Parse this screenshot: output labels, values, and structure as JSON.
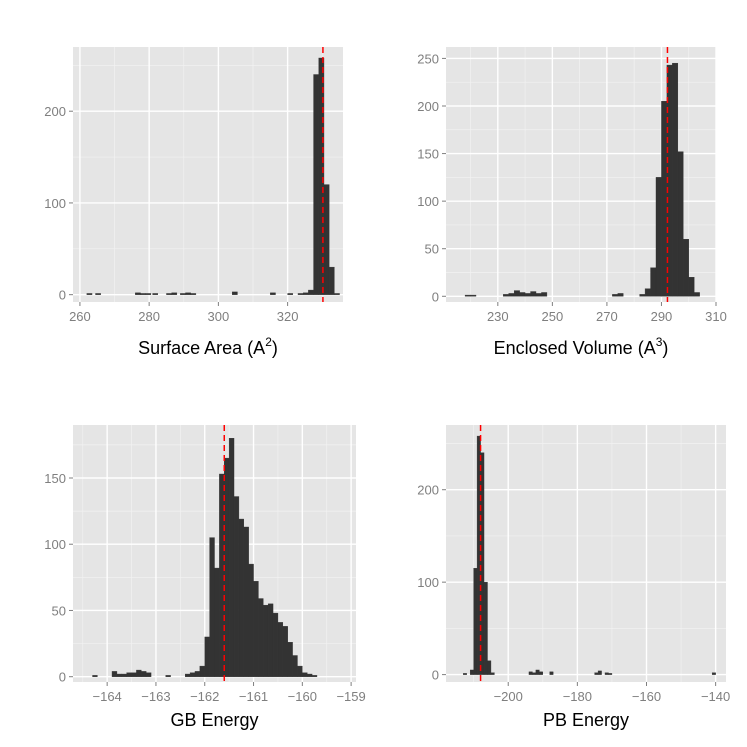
{
  "figure": {
    "reference_line_color": "#ff0000",
    "bar_color": "#333333",
    "panel_background": "#e5e5e5"
  },
  "chart_data": [
    {
      "type": "bar",
      "subtype": "histogram",
      "xlabel": "Surface Area (A",
      "xlabel_superscript": "2",
      "xlabel_suffix": ")",
      "ylabel": "",
      "xlim": [
        258,
        336
      ],
      "ylim": [
        -8,
        270
      ],
      "xticks": [
        260,
        280,
        300,
        320
      ],
      "xtick_labels": [
        "260",
        "280",
        "300",
        "320"
      ],
      "yticks": [
        0,
        100,
        200
      ],
      "ytick_labels": [
        "0",
        "100",
        "200"
      ],
      "reference_line": 330.2,
      "bins": [
        {
          "x0": 262,
          "x1": 263.5,
          "count": 1
        },
        {
          "x0": 264.5,
          "x1": 266,
          "count": 1
        },
        {
          "x0": 276,
          "x1": 277.5,
          "count": 2
        },
        {
          "x0": 277.5,
          "x1": 279,
          "count": 1
        },
        {
          "x0": 279,
          "x1": 280.5,
          "count": 1
        },
        {
          "x0": 281,
          "x1": 282.5,
          "count": 1
        },
        {
          "x0": 285,
          "x1": 286.5,
          "count": 1
        },
        {
          "x0": 286.5,
          "x1": 288,
          "count": 2
        },
        {
          "x0": 289,
          "x1": 290.5,
          "count": 1
        },
        {
          "x0": 290.5,
          "x1": 292,
          "count": 2
        },
        {
          "x0": 292,
          "x1": 293.5,
          "count": 1
        },
        {
          "x0": 304,
          "x1": 305.5,
          "count": 3
        },
        {
          "x0": 315,
          "x1": 316.5,
          "count": 2
        },
        {
          "x0": 320,
          "x1": 321.5,
          "count": 1
        },
        {
          "x0": 323,
          "x1": 324.5,
          "count": 1
        },
        {
          "x0": 324.5,
          "x1": 326,
          "count": 2
        },
        {
          "x0": 326,
          "x1": 327.5,
          "count": 5
        },
        {
          "x0": 327.5,
          "x1": 329,
          "count": 240
        },
        {
          "x0": 329,
          "x1": 330.5,
          "count": 258
        },
        {
          "x0": 330.5,
          "x1": 332,
          "count": 120
        },
        {
          "x0": 332,
          "x1": 333.5,
          "count": 30
        },
        {
          "x0": 333.5,
          "x1": 335,
          "count": 1
        }
      ]
    },
    {
      "type": "bar",
      "subtype": "histogram",
      "xlabel": "Enclosed Volume (A",
      "xlabel_superscript": "3",
      "xlabel_suffix": ")",
      "ylabel": "",
      "xlim": [
        211,
        310
      ],
      "ylim": [
        -6,
        262
      ],
      "xticks": [
        230,
        250,
        270,
        290,
        310
      ],
      "xtick_labels": [
        "230",
        "250",
        "270",
        "290",
        "310"
      ],
      "yticks": [
        0,
        50,
        100,
        150,
        200,
        250
      ],
      "ytick_labels": [
        "0",
        "50",
        "100",
        "150",
        "200",
        "250"
      ],
      "reference_line": 292.2,
      "bins": [
        {
          "x0": 218,
          "x1": 220,
          "count": 1
        },
        {
          "x0": 220,
          "x1": 222,
          "count": 1
        },
        {
          "x0": 232,
          "x1": 234,
          "count": 2
        },
        {
          "x0": 234,
          "x1": 236,
          "count": 3
        },
        {
          "x0": 236,
          "x1": 238,
          "count": 6
        },
        {
          "x0": 238,
          "x1": 240,
          "count": 4
        },
        {
          "x0": 240,
          "x1": 242,
          "count": 3
        },
        {
          "x0": 242,
          "x1": 244,
          "count": 5
        },
        {
          "x0": 244,
          "x1": 246,
          "count": 3
        },
        {
          "x0": 246,
          "x1": 248,
          "count": 4
        },
        {
          "x0": 272,
          "x1": 274,
          "count": 2
        },
        {
          "x0": 274,
          "x1": 276,
          "count": 3
        },
        {
          "x0": 282,
          "x1": 284,
          "count": 2
        },
        {
          "x0": 284,
          "x1": 286,
          "count": 8
        },
        {
          "x0": 286,
          "x1": 288,
          "count": 30
        },
        {
          "x0": 288,
          "x1": 290,
          "count": 125
        },
        {
          "x0": 290,
          "x1": 292,
          "count": 205
        },
        {
          "x0": 292,
          "x1": 294,
          "count": 243
        },
        {
          "x0": 294,
          "x1": 296,
          "count": 245
        },
        {
          "x0": 296,
          "x1": 298,
          "count": 152
        },
        {
          "x0": 298,
          "x1": 300,
          "count": 60
        },
        {
          "x0": 300,
          "x1": 302,
          "count": 20
        },
        {
          "x0": 302,
          "x1": 304,
          "count": 4
        }
      ]
    },
    {
      "type": "bar",
      "subtype": "histogram",
      "xlabel": "GB Energy",
      "xlabel_superscript": "",
      "xlabel_suffix": "",
      "ylabel": "",
      "xlim": [
        -164.7,
        -158.9
      ],
      "ylim": [
        -4,
        190
      ],
      "xticks": [
        -164,
        -163,
        -162,
        -161,
        -160,
        -159
      ],
      "xtick_labels": [
        "−164",
        "−163",
        "−162",
        "−161",
        "−160",
        "−159"
      ],
      "yticks": [
        0,
        50,
        100,
        150
      ],
      "ytick_labels": [
        "0",
        "50",
        "100",
        "150"
      ],
      "reference_line": -161.6,
      "bins": [
        {
          "x0": -164.3,
          "x1": -164.2,
          "count": 1
        },
        {
          "x0": -163.9,
          "x1": -163.8,
          "count": 4
        },
        {
          "x0": -163.8,
          "x1": -163.7,
          "count": 2
        },
        {
          "x0": -163.7,
          "x1": -163.6,
          "count": 2
        },
        {
          "x0": -163.6,
          "x1": -163.5,
          "count": 3
        },
        {
          "x0": -163.5,
          "x1": -163.4,
          "count": 3
        },
        {
          "x0": -163.4,
          "x1": -163.3,
          "count": 5
        },
        {
          "x0": -163.3,
          "x1": -163.2,
          "count": 4
        },
        {
          "x0": -163.2,
          "x1": -163.1,
          "count": 3
        },
        {
          "x0": -162.8,
          "x1": -162.7,
          "count": 1
        },
        {
          "x0": -162.4,
          "x1": -162.3,
          "count": 2
        },
        {
          "x0": -162.3,
          "x1": -162.2,
          "count": 3
        },
        {
          "x0": -162.2,
          "x1": -162.1,
          "count": 4
        },
        {
          "x0": -162.1,
          "x1": -162.0,
          "count": 8
        },
        {
          "x0": -162.0,
          "x1": -161.9,
          "count": 30
        },
        {
          "x0": -161.9,
          "x1": -161.8,
          "count": 105
        },
        {
          "x0": -161.8,
          "x1": -161.7,
          "count": 82
        },
        {
          "x0": -161.7,
          "x1": -161.6,
          "count": 153
        },
        {
          "x0": -161.6,
          "x1": -161.5,
          "count": 165
        },
        {
          "x0": -161.5,
          "x1": -161.4,
          "count": 180
        },
        {
          "x0": -161.4,
          "x1": -161.3,
          "count": 136
        },
        {
          "x0": -161.3,
          "x1": -161.2,
          "count": 119
        },
        {
          "x0": -161.2,
          "x1": -161.1,
          "count": 113
        },
        {
          "x0": -161.1,
          "x1": -161.0,
          "count": 85
        },
        {
          "x0": -161.0,
          "x1": -160.9,
          "count": 72
        },
        {
          "x0": -160.9,
          "x1": -160.8,
          "count": 59
        },
        {
          "x0": -160.8,
          "x1": -160.7,
          "count": 54
        },
        {
          "x0": -160.7,
          "x1": -160.6,
          "count": 55
        },
        {
          "x0": -160.6,
          "x1": -160.5,
          "count": 48
        },
        {
          "x0": -160.5,
          "x1": -160.4,
          "count": 41
        },
        {
          "x0": -160.4,
          "x1": -160.3,
          "count": 38
        },
        {
          "x0": -160.3,
          "x1": -160.2,
          "count": 26
        },
        {
          "x0": -160.2,
          "x1": -160.1,
          "count": 16
        },
        {
          "x0": -160.1,
          "x1": -160.0,
          "count": 8
        },
        {
          "x0": -160.0,
          "x1": -159.9,
          "count": 3
        },
        {
          "x0": -159.9,
          "x1": -159.8,
          "count": 2
        },
        {
          "x0": -159.8,
          "x1": -159.7,
          "count": 1
        }
      ]
    },
    {
      "type": "bar",
      "subtype": "histogram",
      "xlabel": "PB Energy",
      "xlabel_superscript": "",
      "xlabel_suffix": "",
      "ylabel": "",
      "xlim": [
        -218,
        -137
      ],
      "ylim": [
        -8,
        270
      ],
      "xticks": [
        -200,
        -180,
        -160,
        -140
      ],
      "xtick_labels": [
        "−200",
        "−180",
        "−160",
        "−140"
      ],
      "yticks": [
        0,
        100,
        200
      ],
      "ytick_labels": [
        "0",
        "100",
        "200"
      ],
      "reference_line": -208,
      "bins": [
        {
          "x0": -213,
          "x1": -212,
          "count": 1
        },
        {
          "x0": -211,
          "x1": -210,
          "count": 5
        },
        {
          "x0": -210,
          "x1": -209,
          "count": 115
        },
        {
          "x0": -209,
          "x1": -208,
          "count": 258
        },
        {
          "x0": -208,
          "x1": -207,
          "count": 240
        },
        {
          "x0": -207,
          "x1": -206,
          "count": 100
        },
        {
          "x0": -206,
          "x1": -205,
          "count": 15
        },
        {
          "x0": -205,
          "x1": -204,
          "count": 2
        },
        {
          "x0": -194,
          "x1": -193,
          "count": 3
        },
        {
          "x0": -193,
          "x1": -192,
          "count": 2
        },
        {
          "x0": -192,
          "x1": -191,
          "count": 5
        },
        {
          "x0": -191,
          "x1": -190,
          "count": 3
        },
        {
          "x0": -188,
          "x1": -187,
          "count": 3
        },
        {
          "x0": -175,
          "x1": -174,
          "count": 2
        },
        {
          "x0": -174,
          "x1": -173,
          "count": 4
        },
        {
          "x0": -172,
          "x1": -171,
          "count": 2
        },
        {
          "x0": -171,
          "x1": -170,
          "count": 1
        },
        {
          "x0": -141,
          "x1": -140,
          "count": 2
        }
      ]
    }
  ]
}
